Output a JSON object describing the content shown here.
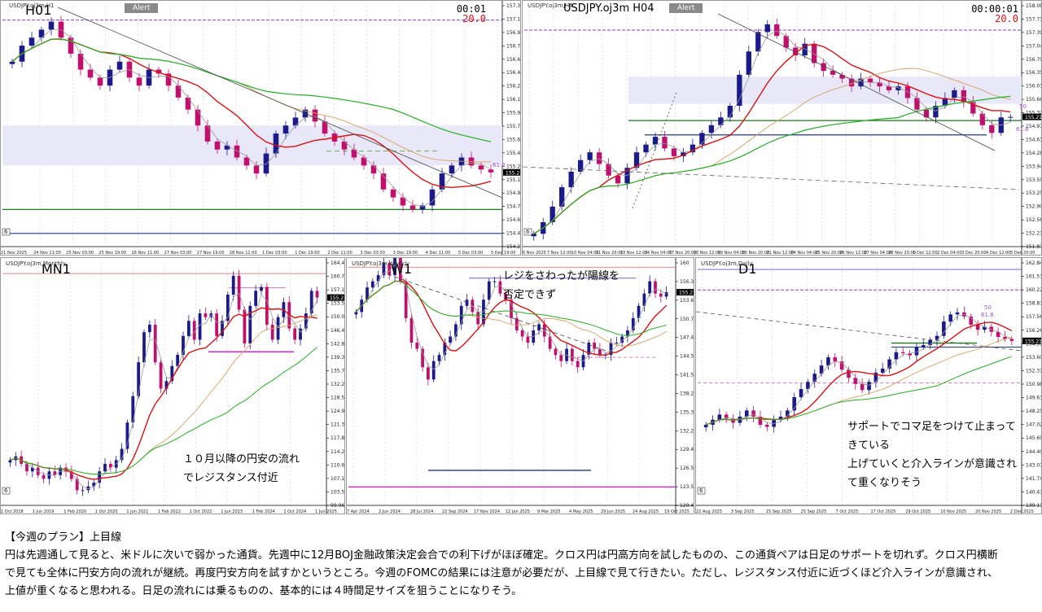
{
  "h01": {
    "title": "H01",
    "symbol": "USDJPY.oj3m,H1",
    "alert": "Alert",
    "clock": "00:01",
    "clock2": "20.0",
    "price_tag": "155.214",
    "fib_label": "61.8",
    "corner_label": "6",
    "y_ticks": [
      "157.300",
      "157.135",
      "156.965",
      "156.795",
      "156.630",
      "156.460",
      "156.290",
      "156.125",
      "155.955",
      "155.790",
      "155.625",
      "155.455",
      "155.290",
      "155.120",
      "154.950",
      "154.785",
      "154.620",
      "154.450",
      "154.285"
    ],
    "x_ticks": [
      "21 Nov 2025",
      "24 Nov 11:00",
      "25 Nov 03:00",
      "25 Nov 19:00",
      "26 Nov 11:00",
      "27 Nov 03:00",
      "27 Nov 19:00",
      "28 Nov 11:00",
      "1 Dec 03:00",
      "1 Dec 19:00",
      "2 Dec 11:00",
      "3 Dec 03:00",
      "3 Dec 19:00",
      "4 Dec 11:00",
      "5 Dec 03:00",
      "5 Dec 19:00"
    ]
  },
  "h04": {
    "title": "USDJPY.oj3m H04",
    "symbol": "USDJPY.oj3m,H4",
    "alert": "Alert",
    "clock": "00:00:01",
    "clock2": "20.0",
    "price_tag": "155.214",
    "fib50": "50",
    "fib618": "61.8",
    "corner_label": "6",
    "y_ticks": [
      "158.080",
      "157.735",
      "157.390",
      "157.045",
      "156.700",
      "156.355",
      "156.010",
      "155.665",
      "155.320",
      "154.975",
      "154.630",
      "154.285",
      "153.940",
      "153.595",
      "153.250",
      "152.905",
      "152.560",
      "152.215",
      "151.870"
    ],
    "x_ticks": [
      "6 Nov 2025",
      "7 Nov 12:00",
      "10 Nov 04:00",
      "11 Nov 20:00",
      "13 Nov 12:00",
      "14 Nov 04:00",
      "17 Nov 20:00",
      "18 Nov 12:00",
      "19 Nov 04:00",
      "20 Nov 20:00",
      "21 Nov 12:00",
      "24 Nov 04:00",
      "25 Nov 20:00",
      "26 Nov 12:00",
      "27 Nov 04:00",
      "28 Nov 20:00",
      "1 Dec 12:00",
      "2 Dec 04:00",
      "3 Dec 20:00",
      "4 Dec 12:00",
      "5 Dec 20:00"
    ]
  },
  "mn1": {
    "title": "MN1",
    "symbol": "USDJPY.oj3m,Monthly",
    "price_tag": "155.214",
    "corner_label": "6",
    "note": [
      "１０月以降の円安の流れ",
      "でレジスタンス付近"
    ],
    "y_ticks": [
      "164.435",
      "160.780",
      "157.190",
      "153.580",
      "150.050",
      "146.410",
      "142.840",
      "139.340",
      "135.700",
      "132.200",
      "128.525",
      "124.955",
      "121.355",
      "117.815",
      "114.215",
      "110.670",
      "107.115",
      "103.535",
      "99.960"
    ],
    "x_ticks": [
      "1 Oct 2018",
      "1 Jun 2019",
      "1 Feb 2020",
      "1 Oct 2020",
      "1 Jun 2021",
      "1 Feb 2022",
      "1 Oct 2022",
      "1 Jun 2023",
      "1 Feb 2024",
      "1 Oct 2024",
      "1 Jun 2025"
    ]
  },
  "w1": {
    "title": "W1",
    "symbol": "USDJPY.oj3m,Weekly",
    "price_tag": "155.214",
    "note": [
      "レジをさわったが陽線を",
      "否定できず"
    ],
    "y_ticks": [
      "160",
      "156.385",
      "153.620",
      "150.735",
      "147.450",
      "144.550",
      "141.575",
      "138.285",
      "135.380",
      "132.200",
      "129.450",
      "126.565",
      "123.580",
      "120.495"
    ],
    "x_ticks": [
      "7 Apr 2024",
      "2 Jun 2024",
      "28 Jul 2024",
      "22 Sep 2024",
      "17 Nov 2024",
      "12 Jan 2025",
      "9 Mar 2025",
      "4 May 2025",
      "29 Jun 2025",
      "24 Aug 2025",
      "19 Oct 2025"
    ]
  },
  "d1": {
    "title": "D1",
    "symbol": "USDJPY.oj3m,Daily",
    "price_tag": "155.214",
    "fib50": "50",
    "fib618": "61.8",
    "corner_label": "6",
    "note": [
      "サポートでコマ足をつけて止まって",
      "きている",
      "上げていくと介入ラインが意識され",
      "て重くなりそう"
    ],
    "y_ticks": [
      "162.845",
      "161.515",
      "160.220",
      "158.870",
      "157.560",
      "156.265",
      "154.910",
      "153.605",
      "152.310",
      "150.980",
      "149.630",
      "148.255",
      "147.025",
      "145.695",
      "144.400",
      "143.070",
      "141.740",
      "140.410",
      "139.115"
    ],
    "x_ticks": [
      "22 Aug 2025",
      "3 Sep 2025",
      "15 Sep 2025",
      "25 Sep 2025",
      "7 Oct 2025",
      "17 Oct 2025",
      "29 Oct 2025",
      "10 Nov 2025",
      "20 Nov 2025",
      "2 Dec 2025"
    ]
  },
  "plan": {
    "heading": "【今週のプラン】上目線",
    "lines": [
      "円は先週通して見ると、米ドルに次いで弱かった通貨。先週中に12月BOJ金融政策決定会合での利下げがほぼ確定。クロス円は円高方向を試したものの、この通貨ペアは日足のサポートを切れず。クロス円横断",
      "で見ても全体に円安方向の流れが継続。再度円安方向を試すかというところ。今週のFOMCの結果には注意が必要だが、上目線で見て行きたい。ただし、レジスタンス付近に近づくほど介入ラインが意識され、",
      "上値が重くなると思われる。日足の流れには乗るものの、基本的には４時間足サイズを狙うことになりそう。"
    ]
  },
  "chart_data": [
    {
      "type": "candlestick",
      "name": "H01",
      "ylim": [
        154.285,
        157.3
      ],
      "closes": [
        156.6,
        156.8,
        156.9,
        157.0,
        157.1,
        156.9,
        156.7,
        156.5,
        156.4,
        156.3,
        156.5,
        156.6,
        156.4,
        156.3,
        156.5,
        156.45,
        156.3,
        156.15,
        156.0,
        155.8,
        155.6,
        155.5,
        155.55,
        155.4,
        155.3,
        155.2,
        155.45,
        155.7,
        155.8,
        155.9,
        156.0,
        155.85,
        155.7,
        155.6,
        155.5,
        155.4,
        155.3,
        155.2,
        155.0,
        154.9,
        154.8,
        154.75,
        154.8,
        155.0,
        155.2,
        155.3,
        155.4,
        155.3,
        155.25,
        155.214
      ],
      "price": 155.214
    },
    {
      "type": "candlestick",
      "name": "H04",
      "ylim": [
        151.87,
        158.08
      ],
      "closes": [
        152.2,
        152.5,
        152.9,
        153.4,
        153.8,
        154.1,
        154.3,
        154.0,
        153.7,
        153.5,
        153.9,
        154.3,
        154.5,
        154.7,
        154.4,
        154.2,
        154.3,
        154.5,
        154.8,
        155.0,
        155.2,
        155.5,
        156.3,
        156.9,
        157.4,
        157.6,
        157.3,
        157.0,
        156.8,
        157.1,
        156.6,
        156.4,
        156.3,
        156.2,
        156.0,
        156.2,
        156.1,
        156.0,
        155.9,
        156.0,
        155.7,
        155.4,
        155.2,
        155.5,
        155.7,
        155.9,
        155.6,
        155.3,
        155.0,
        154.8,
        155.2,
        155.214
      ],
      "price": 155.214
    },
    {
      "type": "candlestick",
      "name": "MN1",
      "ylim": [
        99.96,
        164.435
      ],
      "closes": [
        112,
        113,
        111,
        109,
        110,
        108,
        107,
        109,
        108,
        110,
        109,
        107,
        104,
        104,
        105,
        106,
        109,
        111,
        110,
        112,
        115,
        122,
        129,
        138,
        146,
        148,
        138,
        131,
        133,
        137,
        140,
        145,
        149,
        144,
        151,
        150,
        151,
        145,
        149,
        156,
        161,
        152,
        143,
        153,
        157,
        158,
        148,
        144,
        150,
        154,
        147,
        144,
        147,
        151,
        157,
        155.214
      ],
      "price": 155.214
    },
    {
      "type": "candlestick",
      "name": "W1",
      "ylim": [
        120.495,
        160
      ],
      "closes": [
        152,
        154,
        156,
        157,
        158,
        160,
        158,
        161,
        157,
        151,
        147,
        146,
        143,
        141,
        144,
        145,
        147,
        148,
        150,
        153,
        154,
        152,
        150,
        154,
        157,
        157,
        155,
        154,
        151,
        149,
        148,
        147,
        149,
        150,
        148,
        146,
        145,
        144,
        146,
        144,
        143,
        145,
        147,
        146,
        145,
        145,
        147,
        147,
        148,
        149,
        151,
        153,
        155,
        157,
        155,
        154.5,
        155.214
      ],
      "price": 155.214
    },
    {
      "type": "candlestick",
      "name": "D1",
      "ylim": [
        139.115,
        162.845
      ],
      "closes": [
        147,
        147.5,
        148,
        147.6,
        147.2,
        147.8,
        148.4,
        147.8,
        147.0,
        146.8,
        147.5,
        147.8,
        148.4,
        149.7,
        150.5,
        151.2,
        152.0,
        152.8,
        153.6,
        153.2,
        152.4,
        151.6,
        151.0,
        150.4,
        151.2,
        152.1,
        152.5,
        153.4,
        154.1,
        154.0,
        153.8,
        154.6,
        154.8,
        155.3,
        155.7,
        157.1,
        157.8,
        158.0,
        157.6,
        156.8,
        156.3,
        156.6,
        156.1,
        155.6,
        155.4,
        155.214
      ],
      "price": 155.214
    }
  ]
}
